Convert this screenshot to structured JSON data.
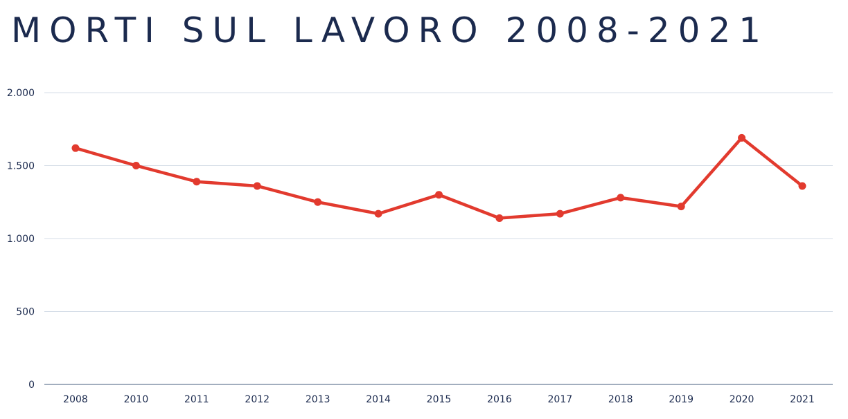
{
  "chart_data": {
    "type": "line",
    "title": "MORTI SUL LAVORO 2008-2021",
    "xlabel": "",
    "ylabel": "",
    "categories": [
      "2008",
      "2010",
      "2011",
      "2012",
      "2013",
      "2014",
      "2015",
      "2016",
      "2017",
      "2018",
      "2019",
      "2020",
      "2021"
    ],
    "values": [
      1620,
      1500,
      1390,
      1360,
      1250,
      1170,
      1300,
      1140,
      1170,
      1280,
      1220,
      1690,
      1360
    ],
    "ylim": [
      0,
      2000
    ],
    "yticks": [
      0,
      500,
      1000,
      1500,
      2000
    ],
    "ytick_labels": [
      "0",
      "500",
      "1.000",
      "1.500",
      "2.000"
    ],
    "grid": true,
    "legend": "none",
    "colors": {
      "line": "#e23a2e",
      "text": "#1b2a4e",
      "grid": "#d5dde7",
      "axis": "#6b7d96"
    }
  }
}
